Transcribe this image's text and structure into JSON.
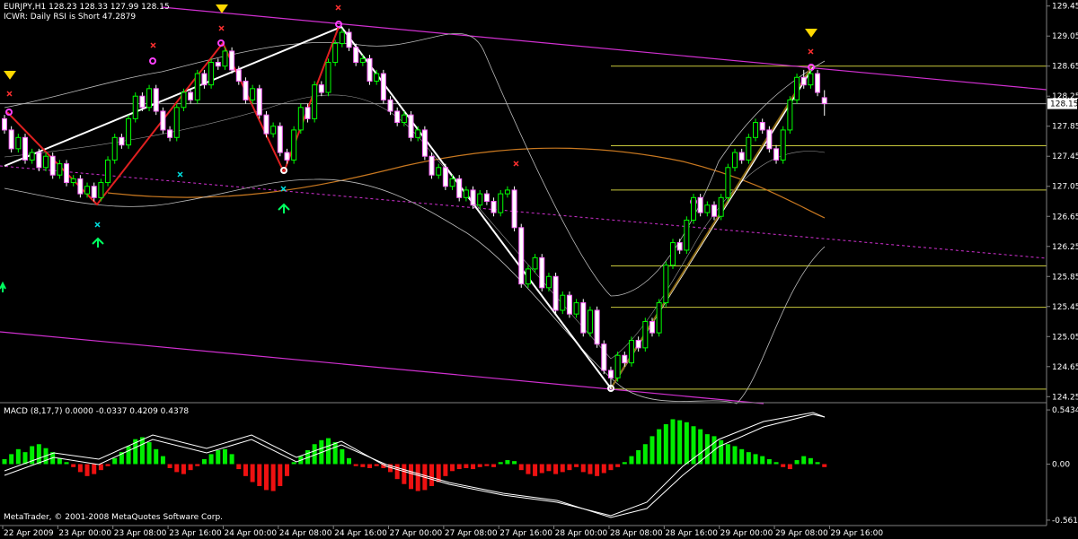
{
  "chart_data": [
    {
      "type": "candlestick",
      "title": "EURJPY,H1  128.23 128.33 127.99 128.15",
      "subtitle": "ICWR: Daily RSI is Short 47.2879",
      "categories": [
        "22 Apr 2009",
        null,
        null,
        null,
        null,
        null,
        null,
        null,
        "23 Apr 00:00",
        null,
        null,
        null,
        null,
        null,
        null,
        null,
        "23 Apr 08:00",
        null,
        null,
        null,
        null,
        null,
        null,
        null,
        "23 Apr 16:00",
        null,
        null,
        null,
        null,
        null,
        null,
        null,
        "24 Apr 00:00",
        null,
        null,
        null,
        null,
        null,
        null,
        null,
        "24 Apr 08:00",
        null,
        null,
        null,
        null,
        null,
        null,
        null,
        "24 Apr 16:00",
        null,
        null,
        null,
        null,
        null,
        null,
        null,
        "27 Apr 00:00",
        null,
        null,
        null,
        null,
        null,
        null,
        null,
        "27 Apr 08:00",
        null,
        null,
        null,
        null,
        null,
        null,
        null,
        "27 Apr 16:00",
        null,
        null,
        null,
        null,
        null,
        null,
        null,
        "28 Apr 00:00",
        null,
        null,
        null,
        null,
        null,
        null,
        null,
        "28 Apr 08:00",
        null,
        null,
        null,
        null,
        null,
        null,
        null,
        "28 Apr 16:00",
        null,
        null,
        null,
        null,
        null,
        null,
        null,
        "29 Apr 00:00",
        null,
        null,
        null,
        null,
        null,
        null,
        null,
        "29 Apr 08:00",
        null,
        null,
        null,
        null,
        null,
        null,
        null,
        "29 Apr 16:00"
      ],
      "open": [
        127.95,
        127.8,
        127.55,
        127.7,
        127.4,
        127.5,
        127.3,
        127.45,
        127.2,
        127.35,
        127.1,
        127.15,
        126.95,
        127.05,
        126.9,
        127.1,
        127.4,
        127.7,
        127.6,
        127.95,
        128.25,
        128.1,
        128.35,
        128.05,
        127.8,
        127.7,
        128.1,
        128.3,
        128.2,
        128.55,
        128.4,
        128.7,
        128.65,
        128.85,
        128.6,
        128.45,
        128.2,
        128.35,
        128.0,
        127.75,
        127.85,
        127.5,
        127.4,
        127.8,
        128.1,
        127.95,
        128.4,
        128.3,
        128.7,
        128.95,
        129.1,
        128.9,
        128.7,
        128.75,
        128.45,
        128.55,
        128.2,
        128.05,
        127.9,
        128.0,
        127.7,
        127.8,
        127.45,
        127.2,
        127.3,
        127.05,
        127.15,
        126.9,
        127.0,
        126.8,
        126.95,
        126.85,
        126.7,
        126.95,
        127.0,
        126.5,
        125.75,
        125.95,
        126.1,
        125.7,
        125.85,
        125.4,
        125.6,
        125.35,
        125.5,
        125.1,
        125.4,
        124.95,
        124.6,
        124.5,
        124.8,
        124.7,
        125.0,
        124.9,
        125.25,
        125.1,
        125.5,
        126.0,
        126.3,
        126.2,
        126.6,
        126.9,
        126.7,
        126.8,
        126.65,
        126.9,
        127.3,
        127.5,
        127.4,
        127.7,
        127.9,
        127.8,
        127.55,
        127.4,
        127.8,
        128.2,
        128.5,
        128.4,
        128.55,
        128.23,
        null
      ],
      "high": [
        128.0,
        127.85,
        127.75,
        127.75,
        127.55,
        127.55,
        127.5,
        127.5,
        127.4,
        127.4,
        127.2,
        127.2,
        127.1,
        127.1,
        127.15,
        127.45,
        127.75,
        127.75,
        128.0,
        128.3,
        128.3,
        128.4,
        128.4,
        128.1,
        127.85,
        128.15,
        128.35,
        128.35,
        128.6,
        128.6,
        128.75,
        128.75,
        128.9,
        128.9,
        128.65,
        128.5,
        128.4,
        128.4,
        128.05,
        127.9,
        127.9,
        127.55,
        127.85,
        128.15,
        128.15,
        128.45,
        128.45,
        128.75,
        129.0,
        129.15,
        129.15,
        128.95,
        128.8,
        128.8,
        128.6,
        128.6,
        128.25,
        128.1,
        128.05,
        128.05,
        127.85,
        127.85,
        127.5,
        127.35,
        127.35,
        127.2,
        127.2,
        127.05,
        127.05,
        127.0,
        127.0,
        126.9,
        127.0,
        127.05,
        127.05,
        126.55,
        126.0,
        126.15,
        126.15,
        125.9,
        125.9,
        125.65,
        125.65,
        125.55,
        125.55,
        125.45,
        125.45,
        125.0,
        124.65,
        124.85,
        124.85,
        125.05,
        125.05,
        125.3,
        125.3,
        125.55,
        126.05,
        126.35,
        126.35,
        126.65,
        126.95,
        126.95,
        126.85,
        126.85,
        126.95,
        127.35,
        127.55,
        127.55,
        127.75,
        127.95,
        127.95,
        127.85,
        127.6,
        127.85,
        128.25,
        128.55,
        128.6,
        128.6,
        128.6,
        128.33,
        null
      ],
      "low": [
        127.75,
        127.5,
        127.5,
        127.35,
        127.35,
        127.25,
        127.25,
        127.15,
        127.15,
        127.05,
        127.05,
        126.9,
        126.9,
        126.85,
        126.85,
        127.05,
        127.35,
        127.55,
        127.55,
        127.9,
        128.05,
        128.05,
        128.0,
        127.75,
        127.65,
        127.65,
        128.05,
        128.15,
        128.15,
        128.35,
        128.35,
        128.6,
        128.6,
        128.55,
        128.4,
        128.15,
        128.15,
        127.95,
        127.7,
        127.7,
        127.45,
        127.35,
        127.35,
        127.75,
        127.9,
        127.9,
        128.25,
        128.25,
        128.65,
        128.9,
        128.85,
        128.65,
        128.65,
        128.4,
        128.4,
        128.15,
        128.0,
        127.85,
        127.85,
        127.65,
        127.65,
        127.4,
        127.15,
        127.15,
        127.0,
        127.0,
        126.85,
        126.85,
        126.75,
        126.75,
        126.8,
        126.65,
        126.65,
        126.9,
        126.45,
        125.7,
        125.7,
        125.9,
        125.65,
        125.65,
        125.35,
        125.35,
        125.3,
        125.3,
        125.05,
        125.05,
        124.9,
        124.55,
        124.35,
        124.45,
        124.65,
        124.65,
        124.85,
        124.85,
        125.05,
        125.05,
        125.45,
        125.95,
        126.15,
        126.15,
        126.55,
        126.65,
        126.65,
        126.6,
        126.6,
        126.85,
        127.25,
        127.35,
        127.35,
        127.65,
        127.75,
        127.5,
        127.35,
        127.35,
        127.75,
        128.15,
        128.35,
        128.35,
        128.25,
        127.99,
        null
      ],
      "close": [
        127.8,
        127.55,
        127.7,
        127.4,
        127.5,
        127.3,
        127.45,
        127.2,
        127.35,
        127.1,
        127.15,
        126.95,
        127.05,
        126.9,
        127.1,
        127.4,
        127.7,
        127.6,
        127.95,
        128.25,
        128.1,
        128.35,
        128.05,
        127.8,
        127.7,
        128.1,
        128.3,
        128.2,
        128.55,
        128.4,
        128.7,
        128.65,
        128.85,
        128.6,
        128.45,
        128.2,
        128.35,
        128.0,
        127.75,
        127.85,
        127.5,
        127.4,
        127.8,
        128.1,
        127.95,
        128.4,
        128.3,
        128.7,
        128.95,
        129.1,
        128.9,
        128.7,
        128.75,
        128.45,
        128.55,
        128.2,
        128.05,
        127.9,
        128.0,
        127.7,
        127.8,
        127.45,
        127.2,
        127.3,
        127.05,
        127.15,
        126.9,
        127.0,
        126.8,
        126.95,
        126.85,
        126.7,
        126.95,
        127.0,
        126.5,
        125.75,
        125.95,
        126.1,
        125.7,
        125.85,
        125.4,
        125.6,
        125.35,
        125.5,
        125.1,
        125.4,
        124.95,
        124.6,
        124.5,
        124.8,
        124.7,
        125.0,
        124.9,
        125.25,
        125.1,
        125.5,
        126.0,
        126.3,
        126.2,
        126.6,
        126.9,
        126.7,
        126.8,
        126.65,
        126.9,
        127.3,
        127.5,
        127.4,
        127.7,
        127.9,
        127.8,
        127.55,
        127.4,
        127.8,
        128.2,
        128.5,
        128.4,
        128.55,
        128.3,
        128.15,
        null
      ],
      "up_color": "#00ff00",
      "down_color": "#ffffff",
      "down_stroke": "#ff66ff",
      "ylim": [
        124.17,
        129.53
      ],
      "yticks": [
        129.45,
        129.05,
        128.65,
        128.25,
        127.85,
        127.45,
        127.05,
        126.65,
        126.25,
        125.85,
        125.45,
        125.05,
        124.65,
        124.25
      ],
      "last_price": 128.15,
      "fib_levels": [
        128.65,
        127.59,
        127.0,
        125.99,
        125.44,
        124.35
      ],
      "fib_color": "#c8c83c"
    },
    {
      "type": "bar",
      "title": "MACD  (8,17,7) 0.0000 -0.0337 0.4209 0.4378",
      "values": [
        0.05,
        0.1,
        0.15,
        0.12,
        0.18,
        0.2,
        0.16,
        0.12,
        0.06,
        0.02,
        -0.03,
        -0.08,
        -0.12,
        -0.1,
        -0.06,
        -0.02,
        0.06,
        0.12,
        0.18,
        0.25,
        0.27,
        0.22,
        0.15,
        0.08,
        -0.04,
        -0.08,
        -0.1,
        -0.06,
        -0.02,
        0.05,
        0.1,
        0.14,
        0.15,
        0.1,
        -0.05,
        -0.12,
        -0.18,
        -0.22,
        -0.26,
        -0.27,
        -0.22,
        -0.12,
        0.02,
        0.08,
        0.14,
        0.2,
        0.24,
        0.26,
        0.22,
        0.15,
        0.06,
        -0.02,
        -0.03,
        -0.04,
        -0.02,
        -0.04,
        -0.08,
        -0.15,
        -0.2,
        -0.25,
        -0.27,
        -0.26,
        -0.22,
        -0.18,
        -0.12,
        -0.07,
        -0.05,
        -0.04,
        -0.05,
        -0.03,
        -0.02,
        -0.03,
        0.02,
        0.04,
        0.03,
        -0.06,
        -0.1,
        -0.12,
        -0.09,
        -0.07,
        -0.1,
        -0.08,
        -0.06,
        -0.03,
        -0.08,
        -0.1,
        -0.12,
        -0.09,
        -0.06,
        -0.03,
        0.02,
        0.08,
        0.14,
        0.2,
        0.28,
        0.35,
        0.4,
        0.45,
        0.44,
        0.42,
        0.38,
        0.35,
        0.3,
        0.28,
        0.24,
        0.2,
        0.18,
        0.15,
        0.12,
        0.1,
        0.08,
        0.05,
        0.02,
        -0.03,
        -0.05,
        0.04,
        0.08,
        0.06,
        0.02,
        -0.03,
        null
      ],
      "positive_color": "#00ee00",
      "negative_color": "#ee1111",
      "ylim": [
        -0.607,
        0.598
      ],
      "yticks": [
        0.5434,
        {
          "value": 0,
          "label": "0.00"
        },
        -0.5617
      ],
      "annotation": "MetaTrader, © 2001-2008 MetaQuotes Software Corp."
    }
  ]
}
